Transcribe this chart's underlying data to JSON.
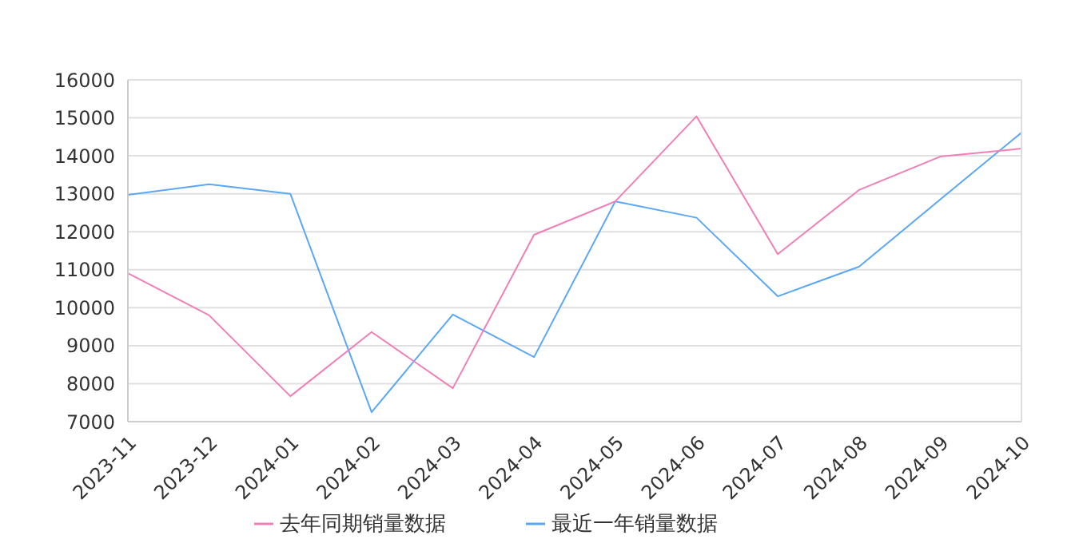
{
  "chart_data": {
    "type": "line",
    "categories": [
      "2023-11",
      "2023-12",
      "2024-01",
      "2024-02",
      "2024-03",
      "2024-04",
      "2024-05",
      "2024-06",
      "2024-07",
      "2024-08",
      "2024-09",
      "2024-10"
    ],
    "series": [
      {
        "name": "最近一年销量数据",
        "color": "#5aa7f5",
        "values": [
          12970,
          13250,
          13000,
          7250,
          9820,
          8700,
          12800,
          12370,
          10300,
          11080,
          12850,
          14610
        ]
      },
      {
        "name": "去年同期销量数据",
        "color": "#f07fb8",
        "values": [
          10910,
          9800,
          7670,
          9360,
          7880,
          11920,
          12800,
          15040,
          11410,
          13100,
          13980,
          14190
        ]
      }
    ],
    "ylim": [
      7000,
      16000
    ],
    "yticks": [
      7000,
      8000,
      9000,
      10000,
      11000,
      12000,
      13000,
      14000,
      15000,
      16000
    ],
    "grid": "y",
    "legend": "bottom",
    "marker": "none",
    "line_style": "solid"
  }
}
